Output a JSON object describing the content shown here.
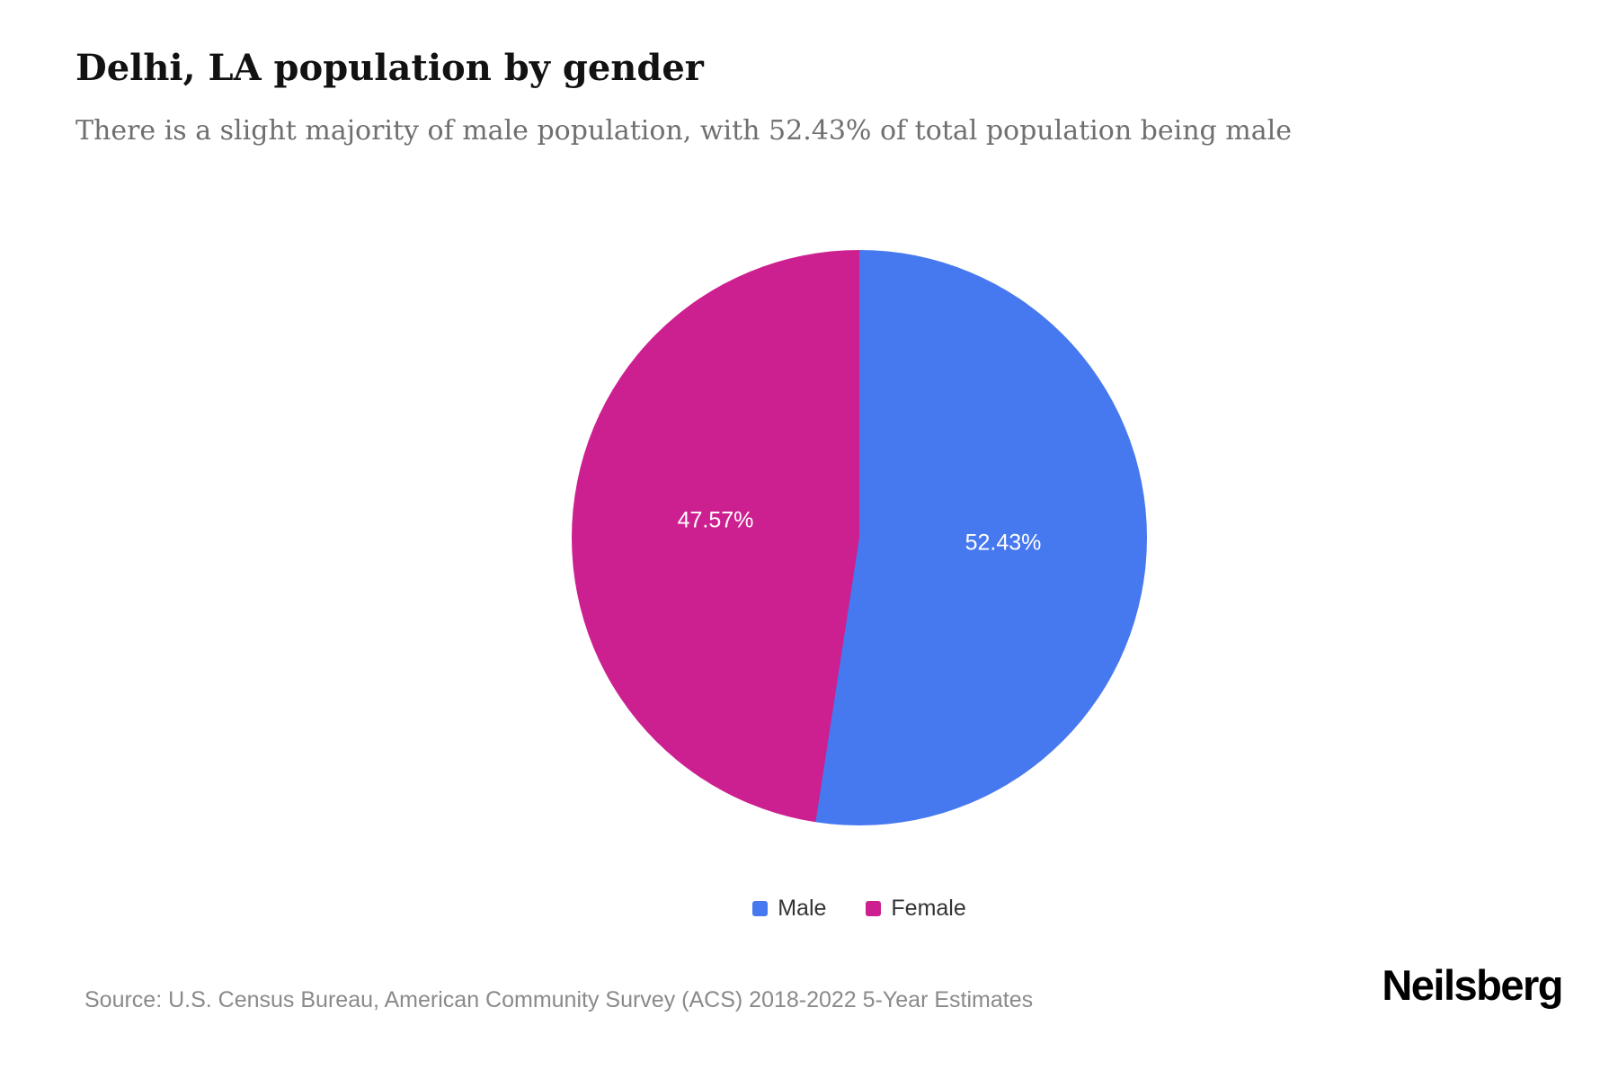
{
  "header": {
    "title": "Delhi, LA population by gender",
    "subtitle": "There is a slight majority of male population, with 52.43% of total population being male"
  },
  "chart_data": {
    "type": "pie",
    "title": "Delhi, LA population by gender",
    "start_angle_deg": 0,
    "direction": "clockwise",
    "legend_position": "bottom",
    "series": [
      {
        "name": "Male",
        "value": 52.43,
        "label": "52.43%",
        "color": "#4678EF"
      },
      {
        "name": "Female",
        "value": 47.57,
        "label": "47.57%",
        "color": "#CC2090"
      }
    ]
  },
  "legend": {
    "items": [
      {
        "label": "Male",
        "color": "#4678EF"
      },
      {
        "label": "Female",
        "color": "#CC2090"
      }
    ]
  },
  "footer": {
    "source": "Source: U.S. Census Bureau, American Community Survey (ACS) 2018-2022 5-Year Estimates",
    "brand": "Neilsberg"
  }
}
